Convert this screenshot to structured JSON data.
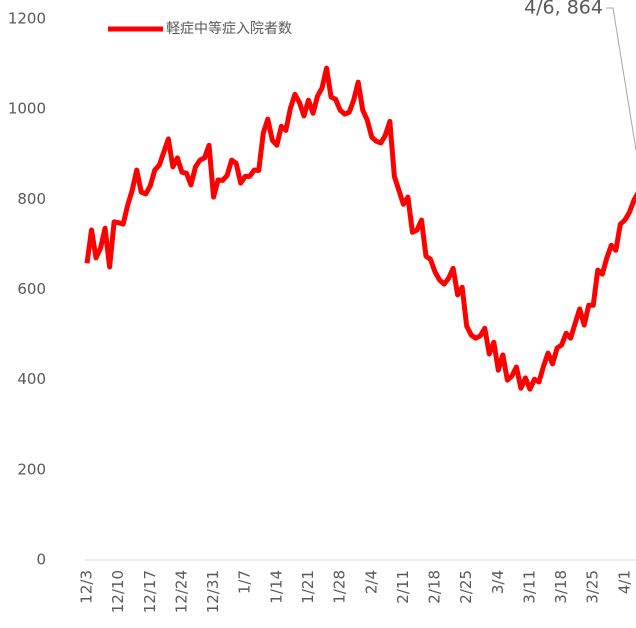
{
  "chart_data": {
    "type": "line",
    "annotation": "4/6, 864",
    "categories": [
      "12/3",
      null,
      null,
      null,
      null,
      null,
      null,
      "12/10",
      null,
      null,
      null,
      null,
      null,
      null,
      "12/17",
      null,
      null,
      null,
      null,
      null,
      null,
      "12/24",
      null,
      null,
      null,
      null,
      null,
      null,
      "12/31",
      null,
      null,
      null,
      null,
      null,
      null,
      "1/7",
      null,
      null,
      null,
      null,
      null,
      null,
      "1/14",
      null,
      null,
      null,
      null,
      null,
      null,
      "1/21",
      null,
      null,
      null,
      null,
      null,
      null,
      "1/28",
      null,
      null,
      null,
      null,
      null,
      null,
      "2/4",
      null,
      null,
      null,
      null,
      null,
      null,
      "2/11",
      null,
      null,
      null,
      null,
      null,
      null,
      "2/18",
      null,
      null,
      null,
      null,
      null,
      null,
      "2/25",
      null,
      null,
      null,
      null,
      null,
      null,
      "3/4",
      null,
      null,
      null,
      null,
      null,
      null,
      "3/11",
      null,
      null,
      null,
      null,
      null,
      null,
      "3/18",
      null,
      null,
      null,
      null,
      null,
      null,
      "3/25",
      null,
      null,
      null,
      null,
      null,
      null,
      "4/1",
      null,
      null,
      null,
      null,
      null
    ],
    "series": [
      {
        "name": "軽症中等症入院者数",
        "color": "#ff0000",
        "values": [
          658,
          732,
          670,
          692,
          736,
          650,
          750,
          748,
          745,
          787,
          820,
          865,
          816,
          812,
          830,
          865,
          876,
          905,
          934,
          872,
          892,
          860,
          858,
          832,
          872,
          887,
          892,
          920,
          805,
          843,
          842,
          853,
          887,
          880,
          836,
          851,
          851,
          865,
          864,
          947,
          978,
          931,
          920,
          962,
          953,
          1002,
          1033,
          1015,
          985,
          1020,
          991,
          1029,
          1047,
          1091,
          1027,
          1022,
          998,
          989,
          993,
          1020,
          1060,
          998,
          976,
          938,
          929,
          925,
          942,
          973,
          851,
          820,
          789,
          805,
          727,
          732,
          754,
          674,
          667,
          639,
          621,
          612,
          625,
          647,
          588,
          605,
          519,
          499,
          492,
          497,
          514,
          457,
          483,
          421,
          455,
          399,
          408,
          428,
          381,
          404,
          379,
          401,
          395,
          430,
          459,
          435,
          470,
          477,
          503,
          492,
          525,
          557,
          521,
          565,
          565,
          643,
          634,
          670,
          698,
          687,
          745,
          754,
          771,
          798,
          816,
          843,
          864
        ]
      }
    ],
    "ylim": [
      0,
      1200
    ],
    "yticks": [
      0,
      200,
      400,
      600,
      800,
      1000,
      1200
    ],
    "grid": false,
    "legend": "top-left"
  }
}
